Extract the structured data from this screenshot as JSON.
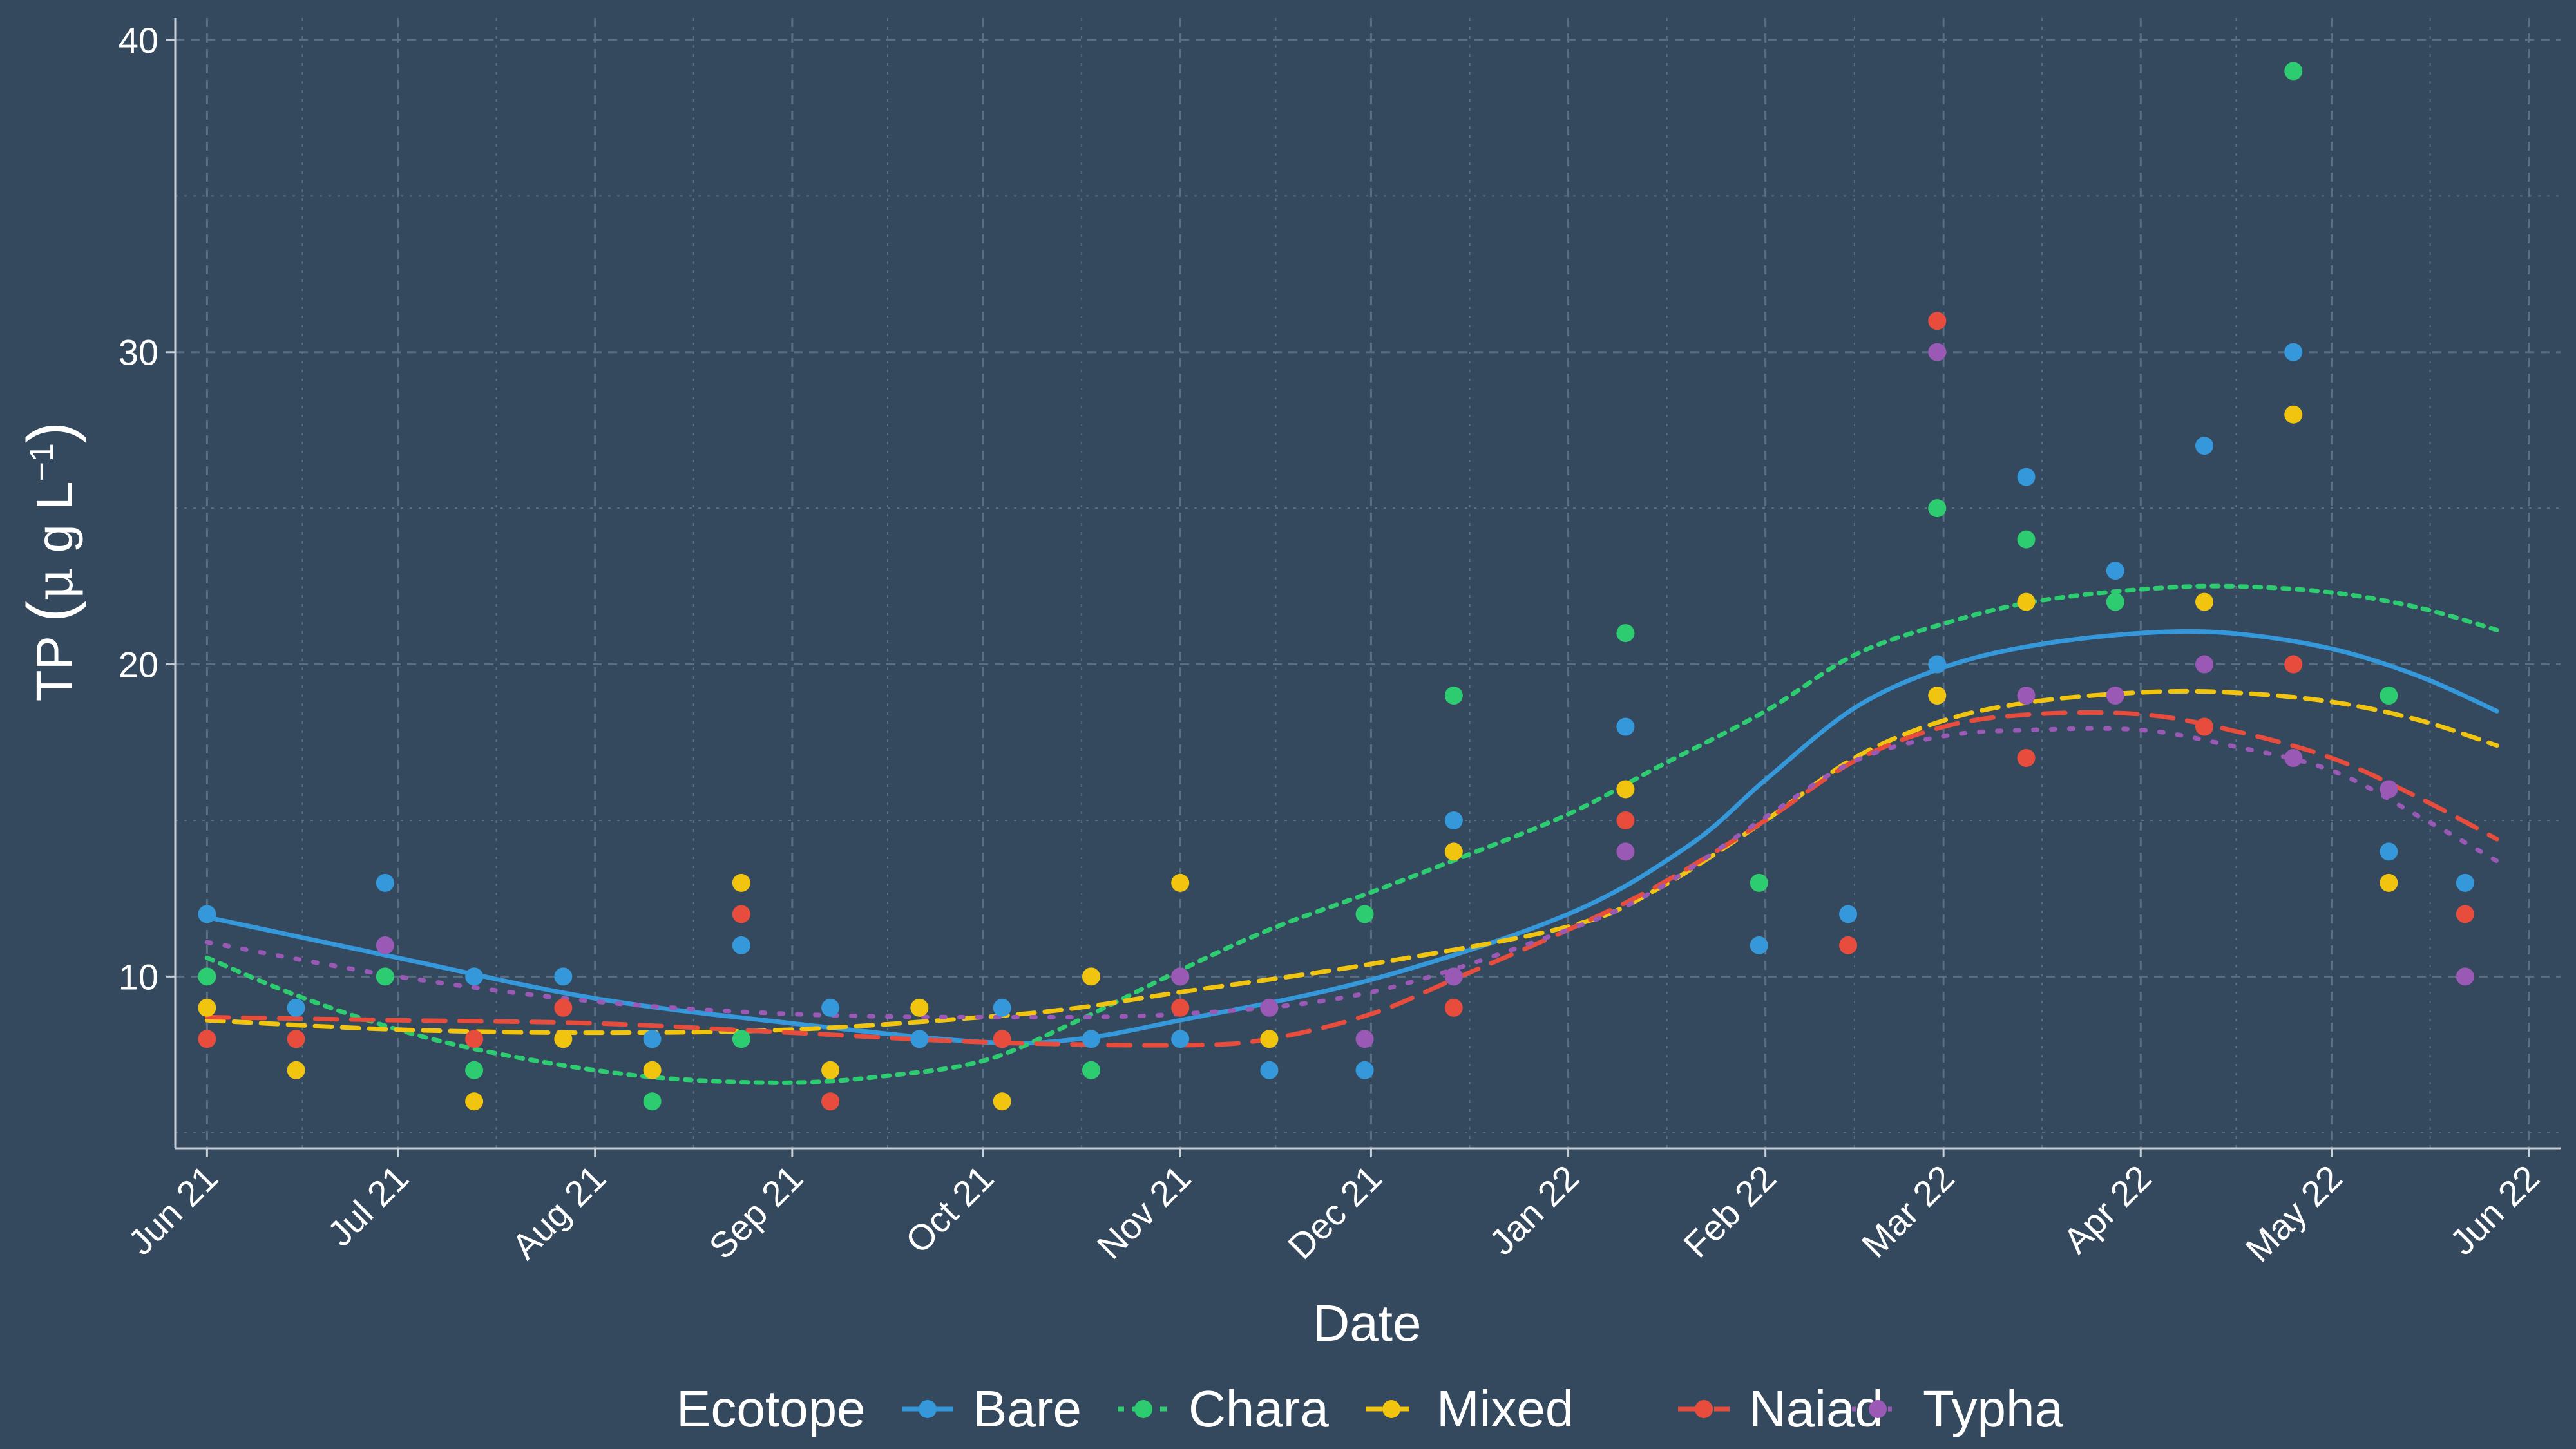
{
  "chart_data": {
    "type": "scatter",
    "xlabel": "Date",
    "ylabel_parts": {
      "main": "TP",
      "open": "(",
      "mu": "μ",
      "g": "g",
      "L": "L",
      "exp": "−1",
      "close": ")"
    },
    "x_range": [
      "2021-05-27",
      "2022-06-06"
    ],
    "ylim": [
      4.5,
      40.7
    ],
    "y_ticks": [
      10,
      20,
      30,
      40
    ],
    "y_tick_labels": [
      "10",
      "20",
      "30",
      "40"
    ],
    "x_ticks": [
      "2021-06-01",
      "2021-07-01",
      "2021-08-01",
      "2021-09-01",
      "2021-10-01",
      "2021-11-01",
      "2021-12-01",
      "2022-01-01",
      "2022-02-01",
      "2022-03-01",
      "2022-04-01",
      "2022-05-01",
      "2022-06-01"
    ],
    "x_tick_labels": [
      "Jun 21",
      "Jul 21",
      "Aug 21",
      "Sep 21",
      "Oct 21",
      "Nov 21",
      "Dec 21",
      "Jan 22",
      "Feb 22",
      "Mar 22",
      "Apr 22",
      "May 22",
      "Jun 22"
    ],
    "grid": true,
    "legend_placement": "bottom",
    "legend_title": "Ecotope",
    "series": [
      {
        "name": "Bare",
        "color": "#3498db",
        "line_style": "solid",
        "points": [
          [
            "2021-06-01",
            12
          ],
          [
            "2021-06-15",
            9
          ],
          [
            "2021-06-29",
            13
          ],
          [
            "2021-07-13",
            10
          ],
          [
            "2021-07-27",
            10
          ],
          [
            "2021-08-10",
            8
          ],
          [
            "2021-08-24",
            11
          ],
          [
            "2021-09-07",
            9
          ],
          [
            "2021-09-21",
            8
          ],
          [
            "2021-10-04",
            9
          ],
          [
            "2021-10-18",
            8
          ],
          [
            "2021-11-01",
            8
          ],
          [
            "2021-11-15",
            7
          ],
          [
            "2021-11-30",
            7
          ],
          [
            "2021-12-14",
            15
          ],
          [
            "2022-01-10",
            18
          ],
          [
            "2022-01-31",
            11
          ],
          [
            "2022-02-14",
            12
          ],
          [
            "2022-02-28",
            20
          ],
          [
            "2022-03-14",
            26
          ],
          [
            "2022-03-28",
            23
          ],
          [
            "2022-04-11",
            27
          ],
          [
            "2022-04-25",
            30
          ],
          [
            "2022-05-10",
            14
          ],
          [
            "2022-05-22",
            13
          ]
        ],
        "trend": [
          [
            "2021-06-01",
            11.9
          ],
          [
            "2021-07-01",
            10.6
          ],
          [
            "2021-08-01",
            9.3
          ],
          [
            "2021-09-01",
            8.5
          ],
          [
            "2021-10-01",
            7.9
          ],
          [
            "2021-10-16",
            8.0
          ],
          [
            "2021-11-01",
            8.6
          ],
          [
            "2021-12-01",
            9.9
          ],
          [
            "2022-01-01",
            12.0
          ],
          [
            "2022-01-20",
            14.2
          ],
          [
            "2022-02-01",
            16.3
          ],
          [
            "2022-02-15",
            18.6
          ],
          [
            "2022-03-01",
            19.9
          ],
          [
            "2022-03-15",
            20.6
          ],
          [
            "2022-04-01",
            21.0
          ],
          [
            "2022-04-15",
            21.0
          ],
          [
            "2022-05-01",
            20.5
          ],
          [
            "2022-05-15",
            19.6
          ],
          [
            "2022-05-27",
            18.5
          ]
        ]
      },
      {
        "name": "Chara",
        "color": "#2ecc71",
        "line_style": "dotted",
        "points": [
          [
            "2021-06-01",
            10
          ],
          [
            "2021-06-29",
            10
          ],
          [
            "2021-07-13",
            7
          ],
          [
            "2021-08-10",
            6
          ],
          [
            "2021-08-24",
            8
          ],
          [
            "2021-10-18",
            7
          ],
          [
            "2021-11-01",
            10
          ],
          [
            "2021-11-30",
            12
          ],
          [
            "2021-12-14",
            19
          ],
          [
            "2022-01-10",
            21
          ],
          [
            "2022-01-31",
            13
          ],
          [
            "2022-02-28",
            25
          ],
          [
            "2022-03-14",
            24
          ],
          [
            "2022-03-28",
            22
          ],
          [
            "2022-04-25",
            39
          ],
          [
            "2022-05-10",
            19
          ]
        ],
        "trend": [
          [
            "2021-06-01",
            10.6
          ],
          [
            "2021-06-15",
            9.4
          ],
          [
            "2021-07-01",
            8.3
          ],
          [
            "2021-07-15",
            7.6
          ],
          [
            "2021-08-01",
            7.0
          ],
          [
            "2021-08-15",
            6.7
          ],
          [
            "2021-09-01",
            6.6
          ],
          [
            "2021-09-15",
            6.8
          ],
          [
            "2021-10-01",
            7.3
          ],
          [
            "2021-10-15",
            8.5
          ],
          [
            "2021-11-01",
            10.2
          ],
          [
            "2021-11-15",
            11.5
          ],
          [
            "2021-12-01",
            12.7
          ],
          [
            "2021-12-15",
            13.8
          ],
          [
            "2022-01-01",
            15.2
          ],
          [
            "2022-01-15",
            16.7
          ],
          [
            "2022-02-01",
            18.5
          ],
          [
            "2022-02-15",
            20.3
          ],
          [
            "2022-03-01",
            21.3
          ],
          [
            "2022-03-15",
            22.0
          ],
          [
            "2022-04-01",
            22.4
          ],
          [
            "2022-04-15",
            22.5
          ],
          [
            "2022-05-01",
            22.3
          ],
          [
            "2022-05-15",
            21.8
          ],
          [
            "2022-05-27",
            21.1
          ]
        ]
      },
      {
        "name": "Mixed",
        "color": "#f1c40f",
        "line_style": "dashed",
        "points": [
          [
            "2021-06-01",
            9
          ],
          [
            "2021-06-15",
            7
          ],
          [
            "2021-07-13",
            6
          ],
          [
            "2021-07-27",
            8
          ],
          [
            "2021-08-10",
            7
          ],
          [
            "2021-08-24",
            13
          ],
          [
            "2021-09-07",
            7
          ],
          [
            "2021-09-21",
            9
          ],
          [
            "2021-10-04",
            6
          ],
          [
            "2021-10-18",
            10
          ],
          [
            "2021-11-01",
            13
          ],
          [
            "2021-11-15",
            8
          ],
          [
            "2021-12-14",
            14
          ],
          [
            "2022-01-10",
            16
          ],
          [
            "2022-02-28",
            19
          ],
          [
            "2022-03-14",
            22
          ],
          [
            "2022-04-11",
            22
          ],
          [
            "2022-04-25",
            28
          ],
          [
            "2022-05-10",
            13
          ]
        ],
        "trend": [
          [
            "2021-06-01",
            8.6
          ],
          [
            "2021-07-01",
            8.3
          ],
          [
            "2021-08-01",
            8.2
          ],
          [
            "2021-09-01",
            8.3
          ],
          [
            "2021-10-01",
            8.7
          ],
          [
            "2021-10-16",
            9.0
          ],
          [
            "2021-11-01",
            9.5
          ],
          [
            "2021-12-01",
            10.4
          ],
          [
            "2022-01-01",
            11.6
          ],
          [
            "2022-01-15",
            12.8
          ],
          [
            "2022-02-01",
            15.0
          ],
          [
            "2022-02-15",
            17.0
          ],
          [
            "2022-03-01",
            18.2
          ],
          [
            "2022-03-15",
            18.8
          ],
          [
            "2022-04-01",
            19.1
          ],
          [
            "2022-04-15",
            19.1
          ],
          [
            "2022-05-01",
            18.8
          ],
          [
            "2022-05-15",
            18.2
          ],
          [
            "2022-05-27",
            17.4
          ]
        ]
      },
      {
        "name": "Naiad",
        "color": "#e74c3c",
        "line_style": "longdash",
        "points": [
          [
            "2021-06-01",
            8
          ],
          [
            "2021-06-15",
            8
          ],
          [
            "2021-07-13",
            8
          ],
          [
            "2021-07-27",
            9
          ],
          [
            "2021-08-24",
            12
          ],
          [
            "2021-09-07",
            6
          ],
          [
            "2021-10-04",
            8
          ],
          [
            "2021-11-01",
            9
          ],
          [
            "2021-12-14",
            9
          ],
          [
            "2022-01-10",
            15
          ],
          [
            "2022-02-14",
            11
          ],
          [
            "2022-02-28",
            31
          ],
          [
            "2022-03-14",
            17
          ],
          [
            "2022-04-11",
            18
          ],
          [
            "2022-04-25",
            20
          ],
          [
            "2022-05-22",
            12
          ]
        ],
        "trend": [
          [
            "2021-06-01",
            8.7
          ],
          [
            "2021-07-01",
            8.6
          ],
          [
            "2021-08-01",
            8.5
          ],
          [
            "2021-09-01",
            8.2
          ],
          [
            "2021-10-01",
            7.9
          ],
          [
            "2021-11-01",
            7.8
          ],
          [
            "2021-11-15",
            8.0
          ],
          [
            "2021-12-01",
            8.8
          ],
          [
            "2021-12-15",
            10.0
          ],
          [
            "2022-01-01",
            11.5
          ],
          [
            "2022-01-15",
            12.9
          ],
          [
            "2022-02-01",
            15.0
          ],
          [
            "2022-02-15",
            16.9
          ],
          [
            "2022-03-01",
            18.0
          ],
          [
            "2022-03-15",
            18.4
          ],
          [
            "2022-04-01",
            18.4
          ],
          [
            "2022-04-15",
            17.9
          ],
          [
            "2022-05-01",
            17.0
          ],
          [
            "2022-05-15",
            15.7
          ],
          [
            "2022-05-27",
            14.4
          ]
        ]
      },
      {
        "name": "Typha",
        "color": "#9b59b6",
        "line_style": "dotted-sparse",
        "points": [
          [
            "2021-06-29",
            11
          ],
          [
            "2021-11-01",
            10
          ],
          [
            "2021-11-15",
            9
          ],
          [
            "2021-11-30",
            8
          ],
          [
            "2021-12-14",
            10
          ],
          [
            "2022-01-10",
            14
          ],
          [
            "2022-02-28",
            30
          ],
          [
            "2022-03-14",
            19
          ],
          [
            "2022-03-28",
            19
          ],
          [
            "2022-04-11",
            20
          ],
          [
            "2022-04-25",
            17
          ],
          [
            "2022-05-10",
            16
          ],
          [
            "2022-05-22",
            10
          ]
        ],
        "trend": [
          [
            "2021-06-01",
            11.1
          ],
          [
            "2021-07-01",
            10.0
          ],
          [
            "2021-08-01",
            9.2
          ],
          [
            "2021-09-01",
            8.8
          ],
          [
            "2021-10-01",
            8.7
          ],
          [
            "2021-11-01",
            8.8
          ],
          [
            "2021-12-01",
            9.5
          ],
          [
            "2022-01-01",
            11.5
          ],
          [
            "2022-01-15",
            12.8
          ],
          [
            "2022-02-01",
            15.1
          ],
          [
            "2022-02-15",
            16.9
          ],
          [
            "2022-03-01",
            17.7
          ],
          [
            "2022-03-15",
            17.9
          ],
          [
            "2022-04-01",
            17.9
          ],
          [
            "2022-04-15",
            17.4
          ],
          [
            "2022-05-01",
            16.6
          ],
          [
            "2022-05-15",
            15.1
          ],
          [
            "2022-05-27",
            13.7
          ]
        ]
      }
    ]
  }
}
